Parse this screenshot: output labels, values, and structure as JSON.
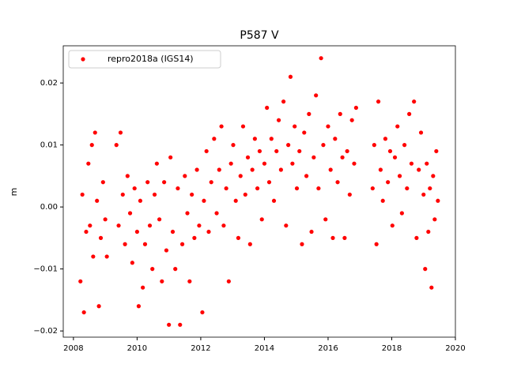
{
  "chart_data": {
    "type": "scatter",
    "title": "P587 V",
    "ylabel": "m",
    "xlim": [
      2007.68,
      2020.0
    ],
    "ylim": [
      -0.021,
      0.026
    ],
    "xticks": [
      2008,
      2010,
      2012,
      2014,
      2016,
      2018,
      2020
    ],
    "yticks": [
      {
        "value": -0.02,
        "label": "−0.02"
      },
      {
        "value": -0.01,
        "label": "−0.01"
      },
      {
        "value": 0,
        "label": "0.00"
      },
      0.01,
      0.02
    ],
    "legend": "upper left",
    "x": [
      2008.22,
      2008.28,
      2008.33,
      2008.4,
      2008.47,
      2008.52,
      2008.58,
      2008.62,
      2008.68,
      2008.74,
      2008.8,
      2008.86,
      2008.93,
      2009.0,
      2009.05,
      2009.35,
      2009.42,
      2009.48,
      2009.55,
      2009.62,
      2009.7,
      2009.78,
      2009.85,
      2009.92,
      2010.0,
      2010.05,
      2010.1,
      2010.18,
      2010.25,
      2010.33,
      2010.4,
      2010.48,
      2010.55,
      2010.62,
      2010.7,
      2010.78,
      2010.85,
      2010.92,
      2011.0,
      2011.05,
      2011.12,
      2011.2,
      2011.28,
      2011.35,
      2011.42,
      2011.5,
      2011.58,
      2011.65,
      2011.72,
      2011.8,
      2011.88,
      2011.95,
      2012.05,
      2012.1,
      2012.18,
      2012.25,
      2012.33,
      2012.42,
      2012.5,
      2012.58,
      2012.65,
      2012.72,
      2012.8,
      2012.88,
      2012.95,
      2013.02,
      2013.1,
      2013.18,
      2013.25,
      2013.33,
      2013.4,
      2013.48,
      2013.55,
      2013.62,
      2013.7,
      2013.78,
      2013.85,
      2013.92,
      2014.0,
      2014.08,
      2014.15,
      2014.22,
      2014.3,
      2014.38,
      2014.45,
      2014.52,
      2014.6,
      2014.68,
      2014.75,
      2014.82,
      2014.88,
      2014.95,
      2015.02,
      2015.1,
      2015.18,
      2015.25,
      2015.32,
      2015.4,
      2015.48,
      2015.55,
      2015.62,
      2015.7,
      2015.78,
      2015.85,
      2015.92,
      2016.0,
      2016.08,
      2016.15,
      2016.22,
      2016.3,
      2016.38,
      2016.45,
      2016.52,
      2016.6,
      2016.68,
      2016.75,
      2016.82,
      2016.88,
      2017.4,
      2017.45,
      2017.52,
      2017.58,
      2017.65,
      2017.72,
      2017.8,
      2017.88,
      2017.95,
      2018.02,
      2018.1,
      2018.18,
      2018.25,
      2018.32,
      2018.4,
      2018.48,
      2018.55,
      2018.62,
      2018.7,
      2018.78,
      2018.85,
      2018.92,
      2019.0,
      2019.05,
      2019.1,
      2019.15,
      2019.2,
      2019.25,
      2019.3,
      2019.35,
      2019.4,
      2019.45
    ],
    "series": [
      {
        "name": "repro2018a (IGS14)",
        "color": "#ff0000",
        "values": [
          -0.012,
          0.002,
          -0.017,
          -0.004,
          0.007,
          -0.003,
          0.01,
          -0.008,
          0.012,
          0.001,
          -0.016,
          -0.005,
          0.004,
          -0.002,
          -0.008,
          0.01,
          -0.003,
          0.012,
          0.002,
          -0.006,
          0.005,
          -0.001,
          -0.009,
          0.003,
          -0.004,
          -0.016,
          0.001,
          -0.013,
          -0.006,
          0.004,
          -0.003,
          -0.01,
          0.002,
          0.007,
          -0.002,
          -0.012,
          0.004,
          -0.007,
          -0.019,
          0.008,
          -0.004,
          -0.01,
          0.003,
          -0.019,
          -0.006,
          0.005,
          -0.001,
          -0.012,
          0.002,
          -0.005,
          0.006,
          -0.003,
          -0.017,
          0.001,
          0.009,
          -0.004,
          0.004,
          0.011,
          -0.001,
          0.006,
          0.013,
          -0.003,
          0.003,
          -0.012,
          0.007,
          0.01,
          0.001,
          -0.005,
          0.005,
          0.013,
          0.002,
          0.008,
          -0.006,
          0.006,
          0.011,
          0.003,
          0.009,
          -0.002,
          0.007,
          0.016,
          0.004,
          0.011,
          0.001,
          0.009,
          0.014,
          0.006,
          0.017,
          -0.003,
          0.01,
          0.021,
          0.007,
          0.013,
          0.003,
          0.009,
          -0.006,
          0.012,
          0.005,
          0.015,
          -0.004,
          0.008,
          0.018,
          0.003,
          0.024,
          0.01,
          -0.002,
          0.013,
          0.006,
          -0.005,
          0.011,
          0.004,
          0.015,
          0.008,
          -0.005,
          0.009,
          0.002,
          0.014,
          0.007,
          0.016,
          0.003,
          0.01,
          -0.006,
          0.017,
          0.006,
          0.001,
          0.011,
          0.004,
          0.009,
          -0.003,
          0.008,
          0.013,
          0.005,
          -0.001,
          0.01,
          0.003,
          0.015,
          0.007,
          0.017,
          -0.005,
          0.006,
          0.012,
          0.002,
          -0.01,
          0.007,
          -0.004,
          0.003,
          -0.013,
          0.005,
          -0.002,
          0.009,
          0.001
        ]
      }
    ]
  }
}
